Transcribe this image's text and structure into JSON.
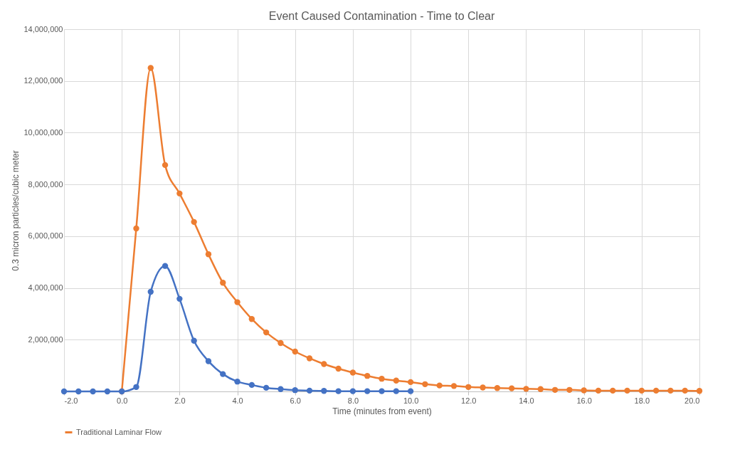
{
  "chart_data": {
    "type": "line",
    "title": "Event Caused Contamination - Time to Clear",
    "xlabel": "Time (minutes from event)",
    "ylabel": "0.3 micron particles/cubic meter",
    "series": [
      {
        "name": "Traditional Laminar Flow",
        "color": "#ed7d31",
        "x": [
          0.0,
          0.5,
          1.0,
          1.5,
          2.0,
          2.5,
          3.0,
          3.5,
          4.0,
          4.5,
          5.0,
          5.5,
          6.0,
          6.5,
          7.0,
          7.5,
          8.0,
          8.5,
          9.0,
          9.5,
          10.0,
          10.5,
          11.0,
          11.5,
          12.0,
          12.5,
          13.0,
          13.5,
          14.0,
          14.5,
          15.0,
          15.5,
          16.0,
          16.5,
          17.0,
          17.5,
          18.0,
          18.5,
          19.0,
          19.5,
          20.0
        ],
        "values": [
          0,
          6300000,
          12500000,
          8750000,
          7650000,
          6550000,
          5300000,
          4200000,
          3450000,
          2800000,
          2280000,
          1870000,
          1540000,
          1280000,
          1060000,
          880000,
          730000,
          600000,
          490000,
          420000,
          360000,
          280000,
          230000,
          210000,
          170000,
          150000,
          130000,
          120000,
          100000,
          90000,
          60000,
          60000,
          40000,
          30000,
          30000,
          30000,
          30000,
          30000,
          30000,
          30000,
          20000
        ]
      },
      {
        "color": "#4472c4",
        "x": [
          -2.0,
          -1.5,
          -1.0,
          -0.5,
          0.0,
          0.5,
          1.0,
          1.5,
          2.0,
          2.5,
          3.0,
          3.5,
          4.0,
          4.5,
          5.0,
          5.5,
          6.0,
          6.5,
          7.0,
          7.5,
          8.0,
          8.5,
          9.0,
          9.5,
          10.0
        ],
        "values": [
          0,
          0,
          0,
          0,
          0,
          170000,
          3850000,
          4850000,
          3580000,
          1960000,
          1170000,
          670000,
          380000,
          250000,
          140000,
          90000,
          50000,
          30000,
          20000,
          10000,
          10000,
          10000,
          10000,
          10000,
          10000
        ]
      }
    ],
    "xlim": [
      -2.0,
      20.0
    ],
    "xticks": [
      {
        "value": -2,
        "label": "-2.0"
      },
      {
        "value": 0,
        "label": "0.0"
      },
      {
        "value": 2,
        "label": "2.0"
      },
      {
        "value": 4,
        "label": "4.0"
      },
      {
        "value": 6,
        "label": "6.0"
      },
      {
        "value": 8,
        "label": "8.0"
      },
      {
        "value": 10,
        "label": "10.0"
      },
      {
        "value": 12,
        "label": "12.0"
      },
      {
        "value": 14,
        "label": "14.0"
      },
      {
        "value": 16,
        "label": "16.0"
      },
      {
        "value": 18,
        "label": "18.0"
      },
      {
        "value": 20,
        "label": "20.0"
      }
    ],
    "ylim": [
      0,
      14000000
    ],
    "yticks": [
      {
        "value": 0,
        "label": null
      },
      {
        "value": 2000000,
        "label": "2,000,000"
      },
      {
        "value": 4000000,
        "label": "4,000,000"
      },
      {
        "value": 6000000,
        "label": "6,000,000"
      },
      {
        "value": 8000000,
        "label": "8,000,000"
      },
      {
        "value": 10000000,
        "label": "10,000,000"
      },
      {
        "value": 12000000,
        "label": "12,000,000"
      },
      {
        "value": 14000000,
        "label": "14,000,000"
      }
    ],
    "grid": true,
    "legend": "bottom",
    "marker": "circle",
    "line_style": "solid"
  }
}
